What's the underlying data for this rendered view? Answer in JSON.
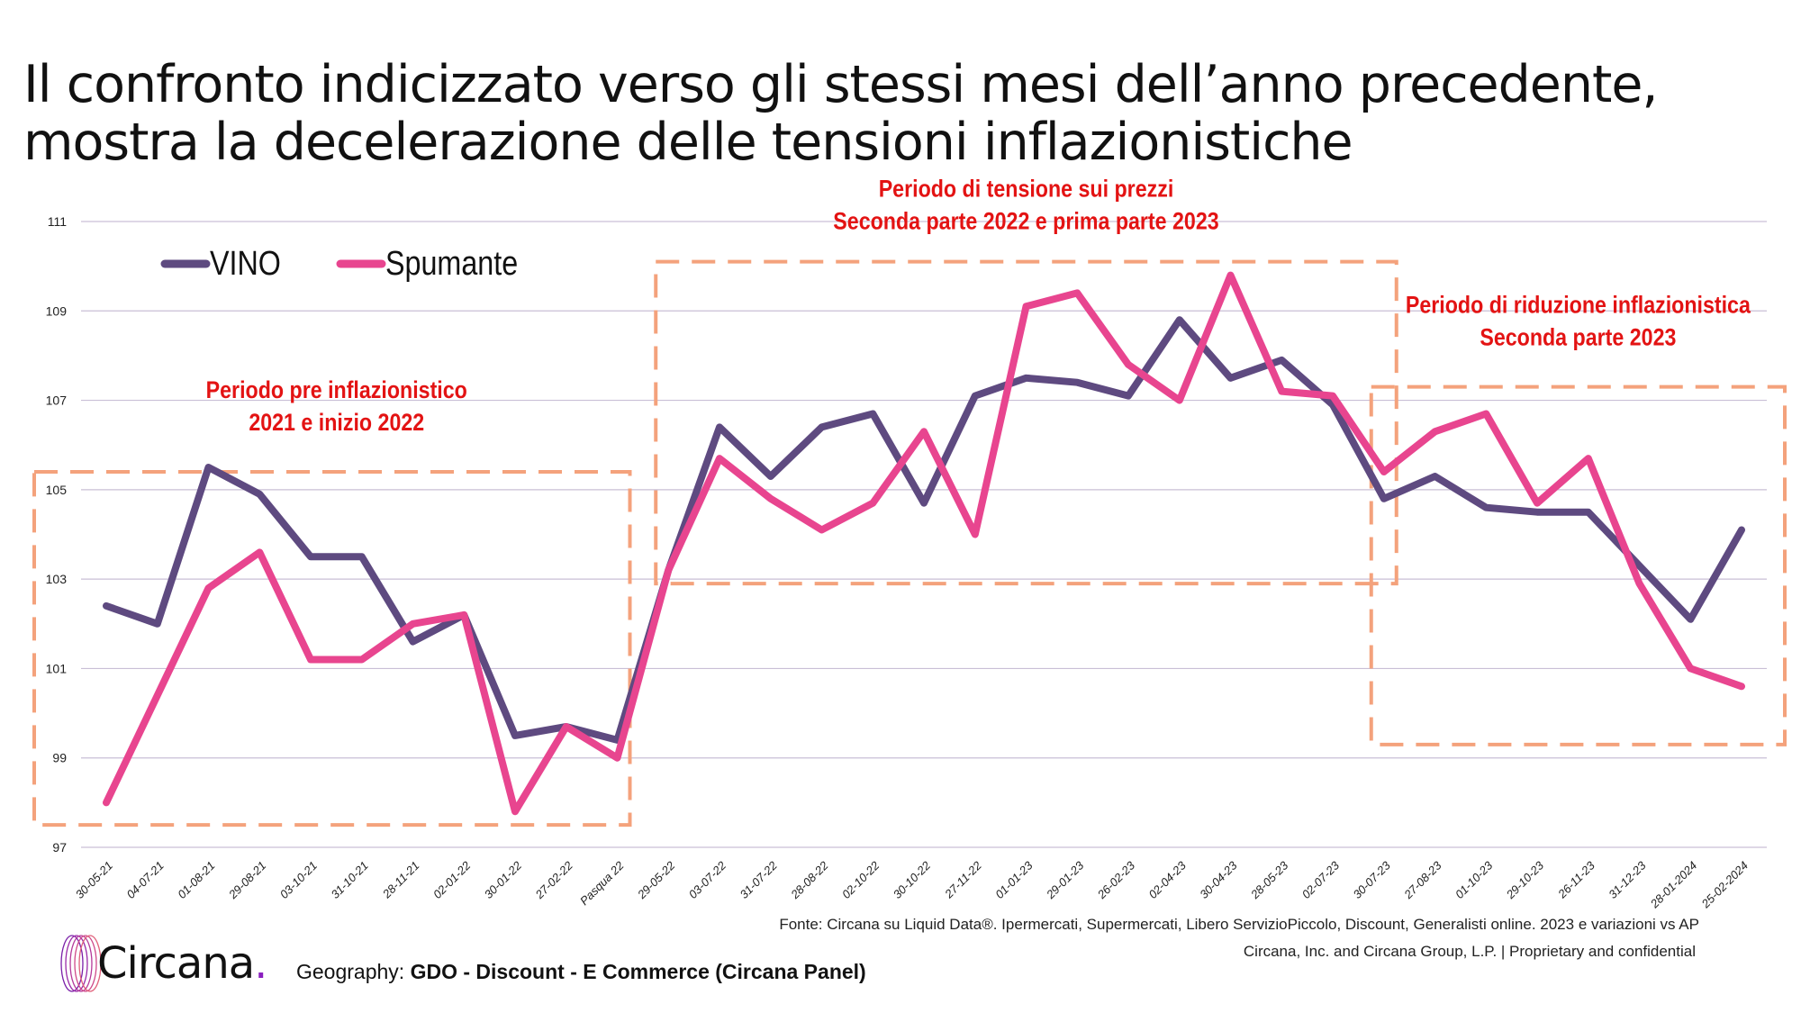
{
  "title": {
    "line1": "Il confronto indicizzato verso gli stessi mesi dell’anno precedente,",
    "line2": "mostra la decelerazione delle tensioni inflazionistiche"
  },
  "chart_data": {
    "type": "line",
    "title": "",
    "xlabel": "",
    "ylabel": "",
    "ylim": [
      97,
      111
    ],
    "yticks": [
      97,
      99,
      101,
      103,
      105,
      107,
      109,
      111
    ],
    "grid": true,
    "legend_position": "top-left",
    "categories": [
      "30-05-21",
      "04-07-21",
      "01-08-21",
      "29-08-21",
      "03-10-21",
      "31-10-21",
      "28-11-21",
      "02-01-22",
      "30-01-22",
      "27-02-22",
      "Pasqua 22",
      "29-05-22",
      "03-07-22",
      "31-07-22",
      "28-08-22",
      "02-10-22",
      "30-10-22",
      "27-11-22",
      "01-01-23",
      "29-01-23",
      "26-02-23",
      "02-04-23",
      "30-04-23",
      "28-05-23",
      "02-07-23",
      "30-07-23",
      "27-08-23",
      "01-10-23",
      "29-10-23",
      "26-11-23",
      "31-12-23",
      "28-01-2024",
      "25-02-2024"
    ],
    "series": [
      {
        "name": "VINO",
        "color": "#5e4a80",
        "values": [
          102.4,
          102.0,
          105.5,
          104.9,
          103.5,
          103.5,
          101.6,
          102.2,
          99.5,
          99.7,
          99.4,
          103.2,
          106.4,
          105.3,
          106.4,
          106.7,
          104.7,
          107.1,
          107.5,
          107.4,
          107.1,
          108.8,
          107.5,
          107.9,
          106.9,
          104.8,
          105.3,
          104.6,
          104.5,
          104.5,
          103.3,
          102.1,
          104.1
        ]
      },
      {
        "name": "Spumante",
        "color": "#e8458f",
        "values": [
          98.0,
          100.4,
          102.8,
          103.6,
          101.2,
          101.2,
          102.0,
          102.2,
          97.8,
          99.7,
          99.0,
          103.2,
          105.7,
          104.8,
          104.1,
          104.7,
          106.3,
          104.0,
          109.1,
          109.4,
          107.8,
          107.0,
          109.8,
          107.2,
          107.1,
          105.4,
          106.3,
          106.7,
          104.7,
          105.7,
          102.9,
          101.0,
          100.6
        ]
      }
    ],
    "annotations": [
      {
        "lines": [
          "Periodo pre inflazionistico",
          "2021 e inizio 2022"
        ],
        "range": [
          "30-05-21",
          "Pasqua 22"
        ],
        "yrange": [
          97.5,
          105.4
        ]
      },
      {
        "lines": [
          "Periodo di tensione sui prezzi",
          "Seconda parte 2022 e prima parte 2023"
        ],
        "range": [
          "29-05-22",
          "30-07-23"
        ],
        "yrange": [
          102.9,
          110.1
        ]
      },
      {
        "lines": [
          "Periodo di riduzione inflazionistica",
          "Seconda parte 2023"
        ],
        "range": [
          "30-07-23",
          "25-02-2024"
        ],
        "yrange": [
          99.3,
          107.3
        ]
      }
    ]
  },
  "colors": {
    "box": "#f4a27c",
    "annotation": "#e31313",
    "grid": "#c9bfd6"
  },
  "footer": {
    "source": "Fonte: Circana su Liquid Data®.  Ipermercati, Supermercati, Libero ServizioPiccolo, Discount, Generalisti online. 2023 e variazioni vs AP",
    "copyright": "Circana, Inc. and Circana Group, L.P. |  Proprietary and confidential",
    "geography_label": "Geography: ",
    "geography_value": "GDO - Discount - E Commerce (Circana Panel)"
  },
  "logo": {
    "text": "Circana",
    "dot": "."
  }
}
